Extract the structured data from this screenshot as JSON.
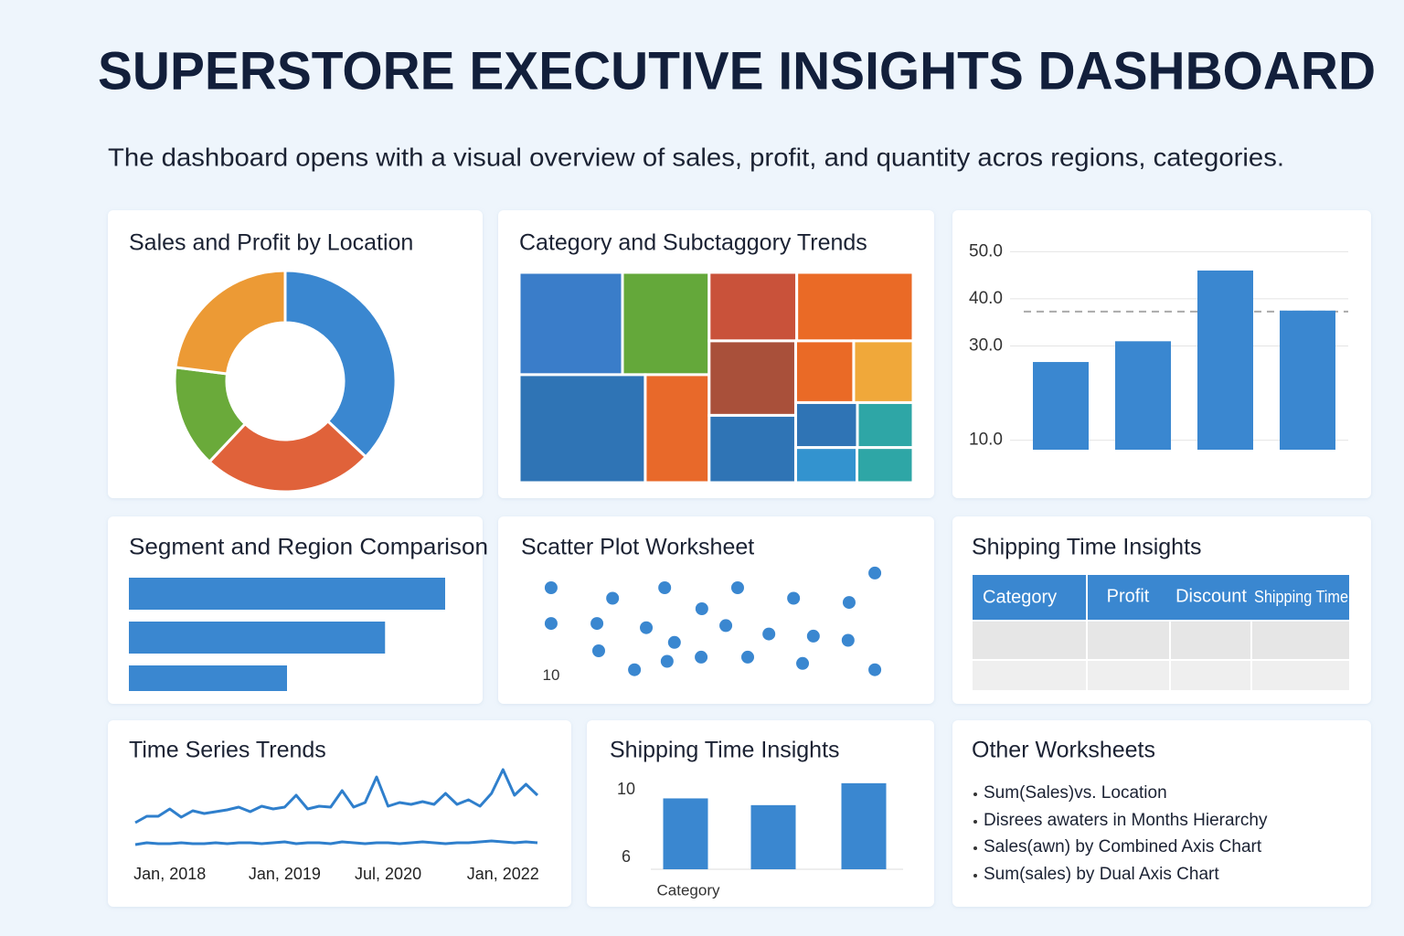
{
  "title": "SUPERSTORE EXECUTIVE INSIGHTS DASHBOARD",
  "subtitle": "The dashboard opens with a visual overview of sales, profit, and quantity acros regions, categories.",
  "chart_data": [
    {
      "type": "donut",
      "title": "Sales and Profit by Location",
      "values": [
        37,
        25,
        15,
        23
      ],
      "colors": [
        "#3a87d0",
        "#e0623a",
        "#6aaa3a",
        "#ec9a35"
      ]
    },
    {
      "type": "treemap",
      "title": "Category and Subctaggory Trends",
      "values": [
        118,
        99,
        152,
        77,
        67,
        89,
        72,
        40,
        41,
        65,
        31,
        28,
        24,
        22
      ],
      "colors": [
        "#3a7dc9",
        "#64a83a",
        "#2f74b5",
        "#e8692a",
        "#c9523a",
        "#ea6a26",
        "#a9503a",
        "#ea6a26",
        "#f0a83a",
        "#2f74b5",
        "#2f74b5",
        "#2ea6a6",
        "#3393cf",
        "#2ea6a6"
      ]
    },
    {
      "type": "bar",
      "values": [
        26.6,
        31,
        46,
        37.5
      ],
      "color": "#3a87d0",
      "ylim": [
        8,
        52
      ],
      "yticks": [
        {
          "value": 50,
          "label": "50.0"
        },
        {
          "value": 40,
          "label": "40.0"
        },
        {
          "value": 30,
          "label": "30.0"
        },
        {
          "value": 10,
          "label": "10.0"
        }
      ],
      "grid": true,
      "reference_line": 37.3
    },
    {
      "type": "hbar",
      "title": "Segment and Region Comparison",
      "values": [
        100,
        81,
        50
      ],
      "color": "#3a87d0",
      "xlim": [
        0,
        100
      ]
    },
    {
      "type": "scatter",
      "title": "Scatter Plot Worksheet",
      "color": "#3a87d0",
      "xlim": [
        0,
        100
      ],
      "ylim": [
        9.2,
        15.2
      ],
      "yticks": [
        10
      ],
      "x": [
        3.4,
        3.4,
        17.1,
        16.6,
        21.1,
        27.4,
        30.8,
        36.1,
        38.9,
        36.8,
        46.6,
        46.8,
        53.7,
        57.1,
        60.0,
        66.1,
        73.2,
        75.8,
        78.9,
        89.2,
        88.9,
        96.6,
        96.6
      ],
      "values": [
        14.2,
        12.5,
        11.2,
        12.5,
        13.7,
        10.3,
        12.3,
        14.2,
        11.6,
        10.7,
        10.9,
        13.2,
        12.4,
        14.2,
        10.9,
        12.0,
        13.7,
        10.6,
        11.9,
        13.5,
        11.7,
        10.3,
        14.9
      ]
    },
    {
      "type": "line",
      "title": "Time Series Trends",
      "ylim": [
        0,
        100
      ],
      "categories": [
        null,
        null,
        null,
        "Jan, 2018",
        null,
        null,
        null,
        null,
        null,
        null,
        null,
        null,
        null,
        "Jan, 2019",
        null,
        null,
        null,
        null,
        null,
        null,
        null,
        null,
        "Jul, 2020",
        null,
        null,
        null,
        null,
        null,
        null,
        null,
        null,
        null,
        "Jan, 2022",
        null,
        null,
        null
      ],
      "series": [
        {
          "color": "#2f7fcc",
          "values": [
            40,
            47,
            47,
            55,
            46,
            53,
            50,
            52,
            54,
            57,
            52,
            58,
            55,
            57,
            70,
            55,
            58,
            57,
            75,
            57,
            62,
            90,
            58,
            62,
            60,
            63,
            60,
            72,
            60,
            65,
            58,
            72,
            98,
            70,
            82,
            70
          ]
        },
        {
          "color": "#2f7fcc",
          "values": [
            16,
            18,
            17,
            17,
            18,
            17,
            17,
            18,
            17,
            18,
            18,
            17,
            18,
            19,
            17,
            18,
            18,
            17,
            19,
            18,
            17,
            18,
            18,
            17,
            18,
            19,
            18,
            17,
            18,
            18,
            19,
            20,
            19,
            18,
            19,
            18
          ]
        }
      ]
    },
    {
      "type": "bar",
      "title": "Shipping Time Insights",
      "x_label": "Category",
      "values": [
        9.5,
        9.1,
        10.4
      ],
      "color": "#3a87d0",
      "ylim": [
        5.3,
        10.5
      ],
      "yticks": [
        10,
        6
      ]
    }
  ],
  "table": {
    "title": "Shipping Time Insights",
    "columns": [
      "Category",
      "Profit",
      "Discount",
      "Shipping Time"
    ]
  },
  "list": {
    "title": "Other Worksheets",
    "items": [
      "Sum(Sales)vs. Location",
      "Disrees awaters in Months Hierarchy",
      "Sales(awn) by Combined Axis Chart",
      "Sum(sales) by Dual Axis Chart"
    ]
  }
}
